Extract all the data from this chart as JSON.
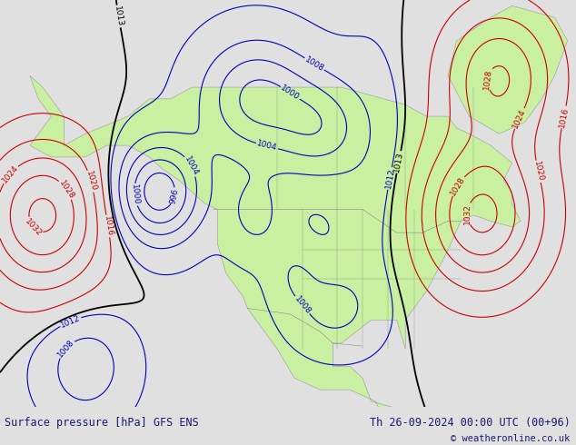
{
  "title_left": "Surface pressure [hPa] GFS ENS",
  "title_right": "Th 26-09-2024 00:00 UTC (00+96)",
  "copyright": "© weatheronline.co.uk",
  "bg_color": "#e0e0e0",
  "land_color": "#c8f0a0",
  "ocean_color": "#d8d8d8",
  "text_color_left": "#1a1a6e",
  "text_color_right": "#1a1a6e",
  "copyright_color": "#1a1a6e",
  "contour_blue": "#0000bb",
  "contour_red": "#cc0000",
  "contour_black": "#000000",
  "label_fontsize": 6.5,
  "footer_fontsize": 8.5,
  "lon_min": -175,
  "lon_max": -40,
  "lat_min": 15,
  "lat_max": 85
}
